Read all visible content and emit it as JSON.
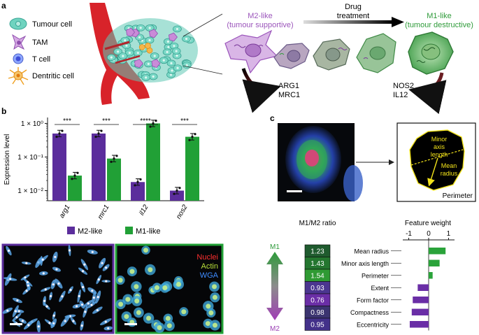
{
  "panel_labels": {
    "a": "a",
    "b": "b",
    "c": "c"
  },
  "panel_a": {
    "legend": [
      {
        "label": "Tumour cell",
        "icon": "tumour-cell-icon"
      },
      {
        "label": "TAM",
        "icon": "tam-icon"
      },
      {
        "label": "T cell",
        "icon": "t-cell-icon"
      },
      {
        "label": "Dentritic cell",
        "icon": "dendritic-cell-icon"
      }
    ],
    "m2_title": "M2-like",
    "m2_subtitle": "(tumour supportive)",
    "m1_title": "M1-like",
    "m1_subtitle": "(tumour destructive)",
    "drug_line1": "Drug",
    "drug_line2": "treatment",
    "m2_markers": [
      "ARG1",
      "MRC1"
    ],
    "m1_markers": [
      "NOS2",
      "IL12"
    ],
    "colors": {
      "m2": "#8e4fae",
      "m1": "#2f9b3a",
      "vessel": "#d8232a",
      "tumour": "#5fc8b4"
    }
  },
  "panel_b": {
    "chart_data": {
      "type": "bar",
      "ylabel": "Expression level",
      "yscale": "log",
      "ylim": [
        0.005,
        1.5
      ],
      "yticks": [
        {
          "value": 1,
          "label": "1 × 10⁰"
        },
        {
          "value": 0.1,
          "label": "1 × 10⁻¹"
        },
        {
          "value": 0.01,
          "label": "1 × 10⁻²"
        }
      ],
      "categories": [
        "arg1",
        "mrc1",
        "il12",
        "nos2"
      ],
      "series": [
        {
          "name": "M2-like",
          "color": "#5b2d9c",
          "values": [
            0.5,
            0.5,
            0.018,
            0.01
          ]
        },
        {
          "name": "M1-like",
          "color": "#21a036",
          "values": [
            0.028,
            0.09,
            1.0,
            0.4
          ]
        }
      ],
      "significance": [
        "***",
        "***",
        "****",
        "***"
      ]
    },
    "micrographs": {
      "m2_border": "#5b2d9c",
      "m1_border": "#21a036",
      "channel_labels": [
        {
          "label": "Nuclei",
          "color": "#ff3030"
        },
        {
          "label": "Actin",
          "color": "#b8e03a"
        },
        {
          "label": "WGA",
          "color": "#3f8cff"
        }
      ]
    }
  },
  "panel_c": {
    "feature_box": {
      "minor_axis_line1": "Minor",
      "minor_axis_line2": "axis",
      "minor_axis_line3": "length",
      "mean_radius_line1": "Mean",
      "mean_radius_line2": "radius",
      "perimeter": "Perimeter"
    },
    "ratio_title": "M1/M2 ratio",
    "weight_title": "Feature weight",
    "m1_label": "M1",
    "m2_label": "M2",
    "chart_data": {
      "type": "bar",
      "orientation": "horizontal",
      "xlabel": "Feature weight",
      "xlim": [
        -1.3,
        1.3
      ],
      "xticks": [
        -1,
        0,
        1
      ],
      "categories": [
        "Mean radius",
        "Minor axis length",
        "Perimeter",
        "Extent",
        "Form factor",
        "Compactness",
        "Eccentricity"
      ],
      "ratios": [
        "1.23",
        "1.43",
        "1.54",
        "0.93",
        "0.76",
        "0.98",
        "0.95"
      ],
      "ratio_colors": [
        "#1f5b2e",
        "#24762f",
        "#2f9a33",
        "#4b3690",
        "#6a2ea6",
        "#3b3470",
        "#43318a"
      ],
      "values": [
        0.85,
        0.55,
        0.2,
        -0.55,
        -0.8,
        -0.85,
        -0.95
      ],
      "bar_colors": [
        "#2aa33a",
        "#2aa33a",
        "#2aa33a",
        "#6a2ea6",
        "#6a2ea6",
        "#6a2ea6",
        "#6a2ea6"
      ]
    }
  }
}
